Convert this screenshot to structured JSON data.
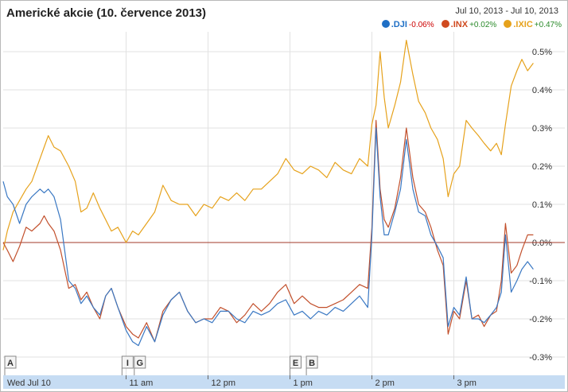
{
  "header": {
    "title": "Americké akcie (10. července 2013)",
    "date_range": "Jul 10, 2013  -  Jul 10, 2013"
  },
  "legend": [
    {
      "symbol": ".DJI",
      "change": "-0.06%",
      "color": "#1f6fc5",
      "change_color": "#cc0000"
    },
    {
      "symbol": ".INX",
      "change": "+0.02%",
      "color": "#d04a1f",
      "change_color": "#2a8a2a"
    },
    {
      "symbol": ".IXIC",
      "change": "+0.47%",
      "color": "#e6a21c",
      "change_color": "#2a8a2a"
    }
  ],
  "markers": [
    {
      "label": "A",
      "time": 9.55
    },
    {
      "label": "I",
      "time": 10.95
    },
    {
      "label": "G",
      "time": 11.1
    },
    {
      "label": "E",
      "time": 13.0
    },
    {
      "label": "B",
      "time": 13.2
    }
  ],
  "chart_data": {
    "type": "line",
    "x_unit": "hour of day",
    "xlim": [
      9.5,
      16.0
    ],
    "ylim": [
      -0.3,
      0.5
    ],
    "y_ticks": [
      0.5,
      0.4,
      0.3,
      0.2,
      0.1,
      0.0,
      -0.1,
      -0.2,
      -0.3
    ],
    "y_tick_labels": [
      "0.5%",
      "0.4%",
      "0.3%",
      "0.2%",
      "0.1%",
      "0.0%",
      "-0.1%",
      "-0.2%",
      "-0.3%"
    ],
    "x_ticks": [
      9.5,
      11,
      12,
      13,
      14,
      15
    ],
    "x_tick_labels": [
      "Wed Jul 10",
      "11 am",
      "12 pm",
      "1 pm",
      "2 pm",
      "3 pm"
    ],
    "grid": true,
    "zero_line_color": "#a33a2a",
    "series": [
      {
        "name": ".IXIC",
        "color": "#e6a21c",
        "points": [
          [
            9.5,
            -0.02
          ],
          [
            9.55,
            0.03
          ],
          [
            9.62,
            0.08
          ],
          [
            9.7,
            0.11
          ],
          [
            9.78,
            0.14
          ],
          [
            9.85,
            0.16
          ],
          [
            9.95,
            0.22
          ],
          [
            10.0,
            0.25
          ],
          [
            10.05,
            0.28
          ],
          [
            10.12,
            0.25
          ],
          [
            10.2,
            0.24
          ],
          [
            10.3,
            0.2
          ],
          [
            10.38,
            0.16
          ],
          [
            10.45,
            0.08
          ],
          [
            10.52,
            0.09
          ],
          [
            10.6,
            0.13
          ],
          [
            10.68,
            0.09
          ],
          [
            10.75,
            0.06
          ],
          [
            10.82,
            0.03
          ],
          [
            10.9,
            0.04
          ],
          [
            11.0,
            0.0
          ],
          [
            11.08,
            0.03
          ],
          [
            11.15,
            0.02
          ],
          [
            11.25,
            0.05
          ],
          [
            11.35,
            0.08
          ],
          [
            11.45,
            0.15
          ],
          [
            11.55,
            0.11
          ],
          [
            11.65,
            0.1
          ],
          [
            11.75,
            0.1
          ],
          [
            11.85,
            0.07
          ],
          [
            11.95,
            0.1
          ],
          [
            12.05,
            0.09
          ],
          [
            12.15,
            0.12
          ],
          [
            12.25,
            0.11
          ],
          [
            12.35,
            0.13
          ],
          [
            12.45,
            0.11
          ],
          [
            12.55,
            0.14
          ],
          [
            12.65,
            0.14
          ],
          [
            12.75,
            0.16
          ],
          [
            12.85,
            0.18
          ],
          [
            12.95,
            0.22
          ],
          [
            13.05,
            0.19
          ],
          [
            13.15,
            0.18
          ],
          [
            13.25,
            0.2
          ],
          [
            13.35,
            0.19
          ],
          [
            13.45,
            0.17
          ],
          [
            13.55,
            0.21
          ],
          [
            13.65,
            0.19
          ],
          [
            13.75,
            0.18
          ],
          [
            13.85,
            0.22
          ],
          [
            13.95,
            0.2
          ],
          [
            14.0,
            0.31
          ],
          [
            14.05,
            0.36
          ],
          [
            14.1,
            0.5
          ],
          [
            14.15,
            0.38
          ],
          [
            14.2,
            0.3
          ],
          [
            14.28,
            0.36
          ],
          [
            14.35,
            0.42
          ],
          [
            14.42,
            0.53
          ],
          [
            14.5,
            0.44
          ],
          [
            14.57,
            0.37
          ],
          [
            14.65,
            0.34
          ],
          [
            14.72,
            0.3
          ],
          [
            14.8,
            0.27
          ],
          [
            14.87,
            0.22
          ],
          [
            14.93,
            0.12
          ],
          [
            15.0,
            0.18
          ],
          [
            15.07,
            0.2
          ],
          [
            15.15,
            0.32
          ],
          [
            15.22,
            0.3
          ],
          [
            15.3,
            0.28
          ],
          [
            15.37,
            0.26
          ],
          [
            15.45,
            0.24
          ],
          [
            15.52,
            0.26
          ],
          [
            15.58,
            0.23
          ],
          [
            15.63,
            0.31
          ],
          [
            15.7,
            0.41
          ],
          [
            15.77,
            0.45
          ],
          [
            15.83,
            0.48
          ],
          [
            15.9,
            0.45
          ],
          [
            15.97,
            0.47
          ]
        ]
      },
      {
        "name": ".INX",
        "color": "#c2502c",
        "points": [
          [
            9.5,
            0.0
          ],
          [
            9.55,
            -0.02
          ],
          [
            9.62,
            -0.05
          ],
          [
            9.7,
            -0.01
          ],
          [
            9.78,
            0.04
          ],
          [
            9.85,
            0.03
          ],
          [
            9.95,
            0.05
          ],
          [
            10.0,
            0.07
          ],
          [
            10.05,
            0.05
          ],
          [
            10.12,
            0.03
          ],
          [
            10.2,
            -0.02
          ],
          [
            10.3,
            -0.12
          ],
          [
            10.38,
            -0.11
          ],
          [
            10.45,
            -0.15
          ],
          [
            10.52,
            -0.13
          ],
          [
            10.6,
            -0.17
          ],
          [
            10.68,
            -0.2
          ],
          [
            10.75,
            -0.14
          ],
          [
            10.82,
            -0.12
          ],
          [
            10.9,
            -0.17
          ],
          [
            11.0,
            -0.22
          ],
          [
            11.08,
            -0.24
          ],
          [
            11.15,
            -0.25
          ],
          [
            11.25,
            -0.21
          ],
          [
            11.35,
            -0.26
          ],
          [
            11.45,
            -0.18
          ],
          [
            11.55,
            -0.15
          ],
          [
            11.65,
            -0.13
          ],
          [
            11.75,
            -0.18
          ],
          [
            11.85,
            -0.21
          ],
          [
            11.95,
            -0.2
          ],
          [
            12.05,
            -0.2
          ],
          [
            12.15,
            -0.17
          ],
          [
            12.25,
            -0.18
          ],
          [
            12.35,
            -0.21
          ],
          [
            12.45,
            -0.19
          ],
          [
            12.55,
            -0.16
          ],
          [
            12.65,
            -0.18
          ],
          [
            12.75,
            -0.16
          ],
          [
            12.85,
            -0.13
          ],
          [
            12.95,
            -0.11
          ],
          [
            13.05,
            -0.16
          ],
          [
            13.15,
            -0.14
          ],
          [
            13.25,
            -0.16
          ],
          [
            13.35,
            -0.17
          ],
          [
            13.45,
            -0.17
          ],
          [
            13.55,
            -0.16
          ],
          [
            13.65,
            -0.15
          ],
          [
            13.75,
            -0.13
          ],
          [
            13.85,
            -0.11
          ],
          [
            13.95,
            -0.12
          ],
          [
            14.0,
            0.04
          ],
          [
            14.05,
            0.32
          ],
          [
            14.1,
            0.14
          ],
          [
            14.15,
            0.06
          ],
          [
            14.2,
            0.04
          ],
          [
            14.28,
            0.09
          ],
          [
            14.35,
            0.17
          ],
          [
            14.42,
            0.3
          ],
          [
            14.5,
            0.17
          ],
          [
            14.57,
            0.1
          ],
          [
            14.65,
            0.08
          ],
          [
            14.72,
            0.04
          ],
          [
            14.8,
            -0.02
          ],
          [
            14.87,
            -0.06
          ],
          [
            14.93,
            -0.24
          ],
          [
            15.0,
            -0.18
          ],
          [
            15.07,
            -0.2
          ],
          [
            15.15,
            -0.1
          ],
          [
            15.22,
            -0.2
          ],
          [
            15.3,
            -0.19
          ],
          [
            15.37,
            -0.22
          ],
          [
            15.45,
            -0.19
          ],
          [
            15.52,
            -0.18
          ],
          [
            15.58,
            -0.1
          ],
          [
            15.63,
            0.05
          ],
          [
            15.7,
            -0.08
          ],
          [
            15.77,
            -0.06
          ],
          [
            15.83,
            -0.02
          ],
          [
            15.9,
            0.02
          ],
          [
            15.97,
            0.02
          ]
        ]
      },
      {
        "name": ".DJI",
        "color": "#3a78c3",
        "points": [
          [
            9.5,
            0.16
          ],
          [
            9.55,
            0.12
          ],
          [
            9.62,
            0.1
          ],
          [
            9.7,
            0.05
          ],
          [
            9.78,
            0.1
          ],
          [
            9.85,
            0.12
          ],
          [
            9.95,
            0.14
          ],
          [
            10.0,
            0.13
          ],
          [
            10.05,
            0.14
          ],
          [
            10.12,
            0.12
          ],
          [
            10.2,
            0.06
          ],
          [
            10.3,
            -0.1
          ],
          [
            10.38,
            -0.12
          ],
          [
            10.45,
            -0.16
          ],
          [
            10.52,
            -0.14
          ],
          [
            10.6,
            -0.17
          ],
          [
            10.68,
            -0.19
          ],
          [
            10.75,
            -0.14
          ],
          [
            10.82,
            -0.12
          ],
          [
            10.9,
            -0.17
          ],
          [
            11.0,
            -0.23
          ],
          [
            11.08,
            -0.26
          ],
          [
            11.15,
            -0.27
          ],
          [
            11.25,
            -0.22
          ],
          [
            11.35,
            -0.26
          ],
          [
            11.45,
            -0.19
          ],
          [
            11.55,
            -0.15
          ],
          [
            11.65,
            -0.13
          ],
          [
            11.75,
            -0.18
          ],
          [
            11.85,
            -0.21
          ],
          [
            11.95,
            -0.2
          ],
          [
            12.05,
            -0.21
          ],
          [
            12.15,
            -0.18
          ],
          [
            12.25,
            -0.18
          ],
          [
            12.35,
            -0.2
          ],
          [
            12.45,
            -0.21
          ],
          [
            12.55,
            -0.18
          ],
          [
            12.65,
            -0.19
          ],
          [
            12.75,
            -0.18
          ],
          [
            12.85,
            -0.16
          ],
          [
            12.95,
            -0.15
          ],
          [
            13.05,
            -0.19
          ],
          [
            13.15,
            -0.18
          ],
          [
            13.25,
            -0.2
          ],
          [
            13.35,
            -0.18
          ],
          [
            13.45,
            -0.19
          ],
          [
            13.55,
            -0.17
          ],
          [
            13.65,
            -0.18
          ],
          [
            13.75,
            -0.16
          ],
          [
            13.85,
            -0.14
          ],
          [
            13.95,
            -0.17
          ],
          [
            14.0,
            0.02
          ],
          [
            14.05,
            0.3
          ],
          [
            14.1,
            0.12
          ],
          [
            14.15,
            0.02
          ],
          [
            14.2,
            0.02
          ],
          [
            14.28,
            0.08
          ],
          [
            14.35,
            0.14
          ],
          [
            14.42,
            0.27
          ],
          [
            14.5,
            0.14
          ],
          [
            14.57,
            0.08
          ],
          [
            14.65,
            0.07
          ],
          [
            14.72,
            0.02
          ],
          [
            14.8,
            -0.01
          ],
          [
            14.87,
            -0.04
          ],
          [
            14.93,
            -0.22
          ],
          [
            15.0,
            -0.17
          ],
          [
            15.07,
            -0.19
          ],
          [
            15.15,
            -0.09
          ],
          [
            15.22,
            -0.2
          ],
          [
            15.3,
            -0.2
          ],
          [
            15.37,
            -0.21
          ],
          [
            15.45,
            -0.19
          ],
          [
            15.52,
            -0.17
          ],
          [
            15.58,
            -0.13
          ],
          [
            15.63,
            0.02
          ],
          [
            15.7,
            -0.13
          ],
          [
            15.77,
            -0.1
          ],
          [
            15.83,
            -0.07
          ],
          [
            15.9,
            -0.05
          ],
          [
            15.97,
            -0.07
          ]
        ]
      }
    ]
  }
}
